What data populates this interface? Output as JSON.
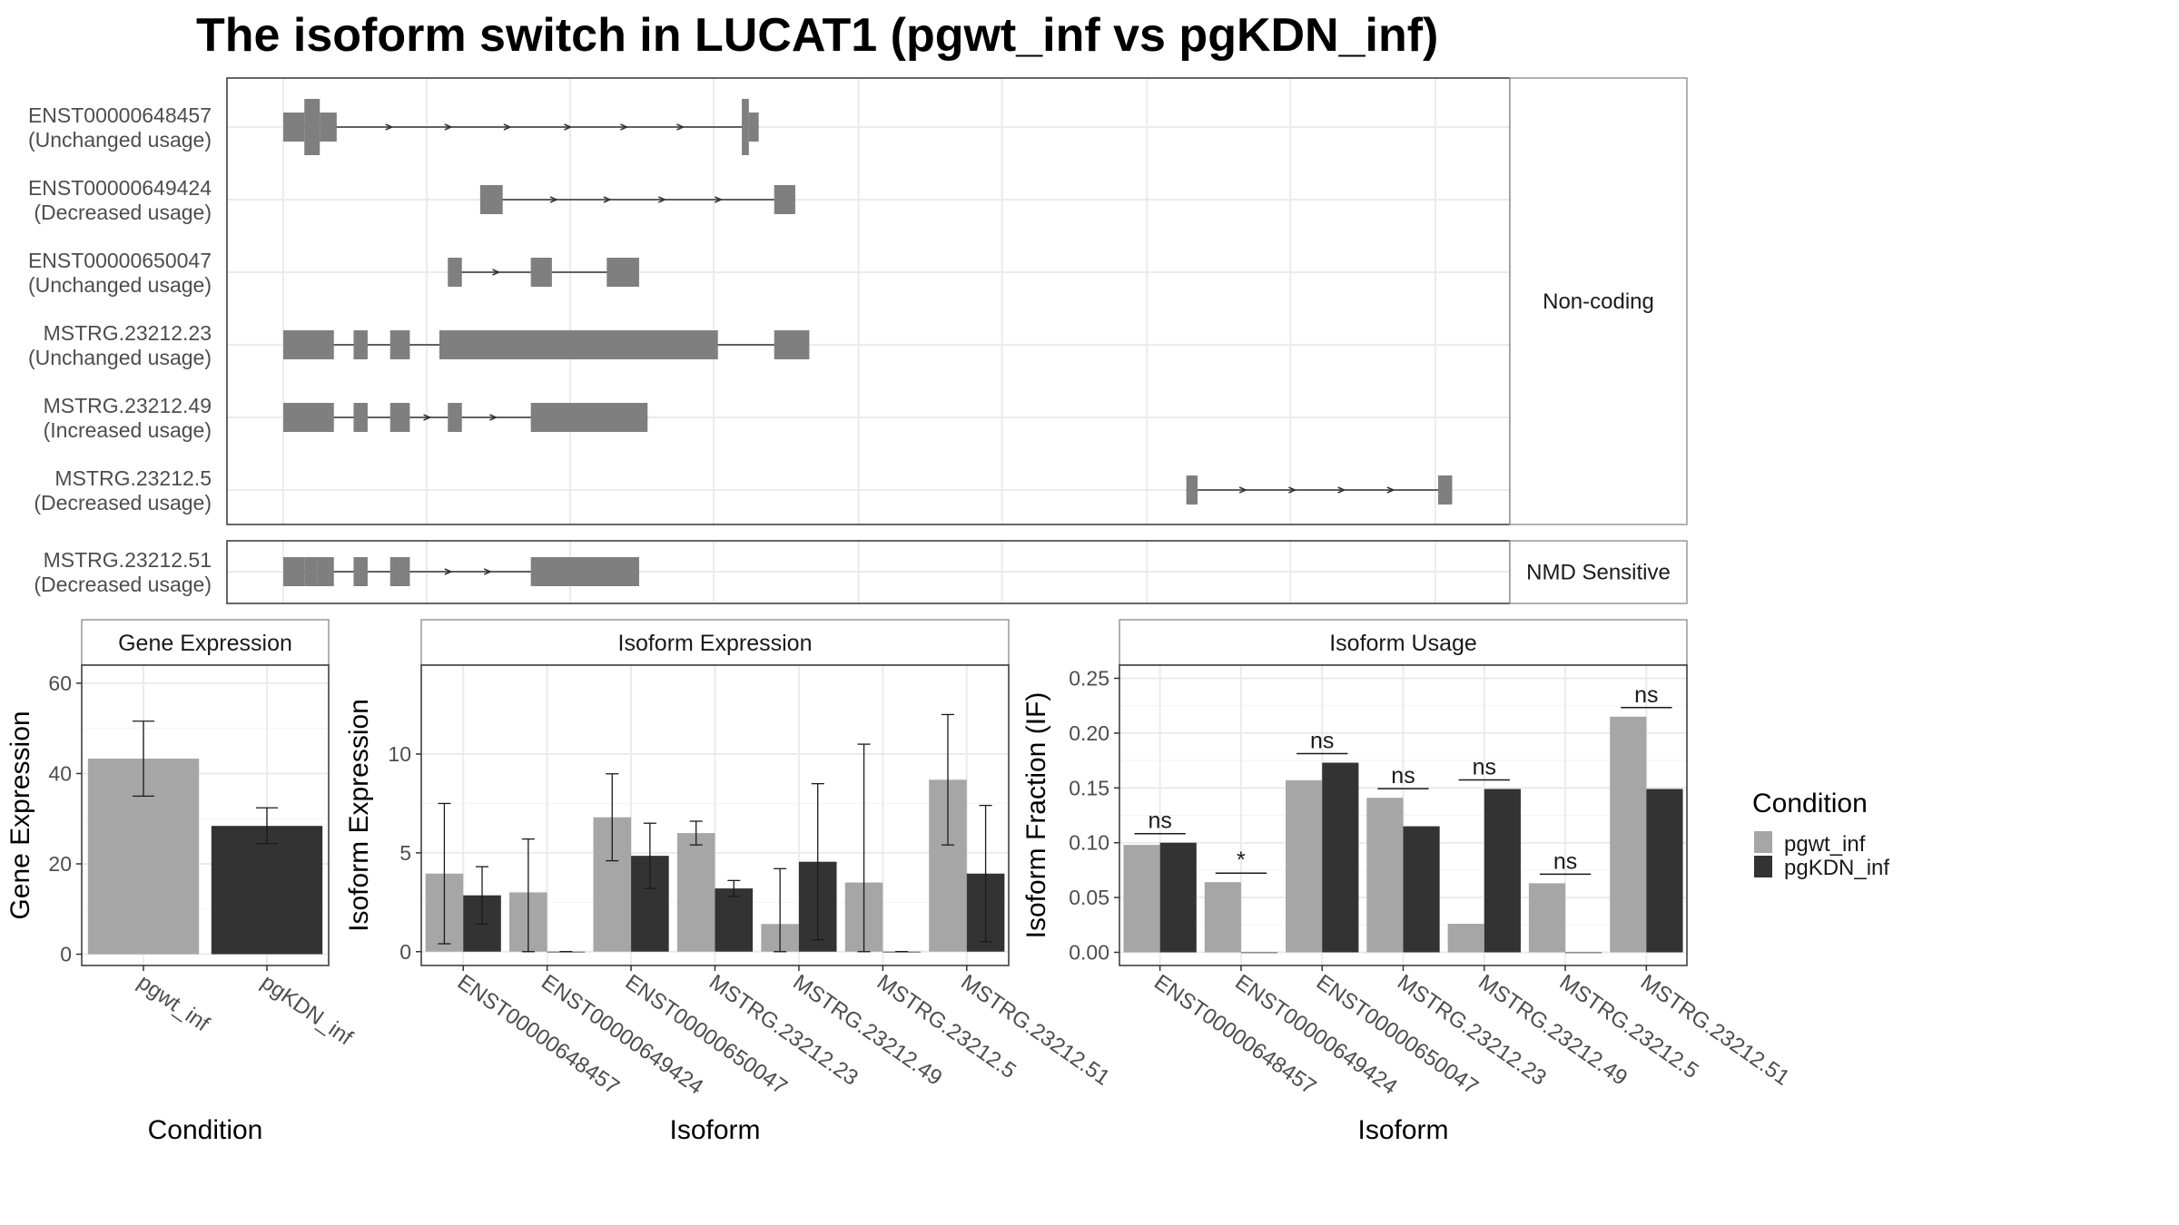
{
  "title": "The isoform switch in LUCAT1 (pgwt_inf vs pgKDN_inf)",
  "colors": {
    "pgwt_inf": "#a6a6a6",
    "pgKDN_inf": "#333333",
    "exon": "#7f7f7f",
    "grid": "#ebebeb",
    "strip": "#ffffff",
    "border": "#333333"
  },
  "chart_data": [
    {
      "type": "gene-structure",
      "groups": [
        {
          "label": "Non-coding",
          "tracks": [
            {
              "name": "ENST00000648457",
              "status": "(Unchanged usage)",
              "exons": [
                [
                  202,
                  217
                ],
                [
                  217,
                  228
                ],
                [
                  228,
                  240
                ],
                [
                  528,
                  533
                ],
                [
                  533,
                  540
                ]
              ],
              "span": [
                202,
                540
              ],
              "arrows": [
                278,
                320,
                362,
                405,
                445,
                485
              ]
            },
            {
              "name": "ENST00000649424",
              "status": "(Decreased usage)",
              "exons": [
                [
                  342,
                  358
                ],
                [
                  551,
                  566
                ]
              ],
              "span": [
                342,
                566
              ],
              "arrows": [
                395,
                433,
                472,
                512
              ]
            },
            {
              "name": "ENST00000650047",
              "status": "(Unchanged usage)",
              "exons": [
                [
                  319,
                  329
                ],
                [
                  378,
                  393
                ],
                [
                  432,
                  455
                ]
              ],
              "span": [
                319,
                455
              ],
              "arrows": [
                354
              ]
            },
            {
              "name": "MSTRG.23212.23",
              "status": "(Unchanged usage)",
              "exons": [
                [
                  202,
                  238
                ],
                [
                  252,
                  262
                ],
                [
                  278,
                  292
                ],
                [
                  313,
                  511
                ],
                [
                  551,
                  576
                ]
              ],
              "span": [
                202,
                576
              ],
              "arrows": []
            },
            {
              "name": "MSTRG.23212.49",
              "status": "(Increased usage)",
              "exons": [
                [
                  202,
                  238
                ],
                [
                  252,
                  262
                ],
                [
                  278,
                  292
                ],
                [
                  319,
                  329
                ],
                [
                  378,
                  461
                ]
              ],
              "span": [
                202,
                461
              ],
              "arrows": [
                305,
                352
              ]
            },
            {
              "name": "MSTRG.23212.5",
              "status": "(Decreased usage)",
              "exons": [
                [
                  844,
                  852
                ],
                [
                  1023,
                  1033
                ]
              ],
              "span": [
                844,
                1033
              ],
              "arrows": [
                885,
                920,
                955,
                990
              ]
            }
          ]
        },
        {
          "label": "NMD Sensitive",
          "tracks": [
            {
              "name": "MSTRG.23212.51",
              "status": "(Decreased usage)",
              "exons": [
                [
                  202,
                  217
                ],
                [
                  217,
                  226
                ],
                [
                  226,
                  238
                ],
                [
                  252,
                  262
                ],
                [
                  278,
                  285
                ],
                [
                  285,
                  292
                ],
                [
                  378,
                  455
                ]
              ],
              "span": [
                202,
                455
              ],
              "arrows": [
                320,
                348
              ]
            }
          ]
        }
      ],
      "xlim": [
        162,
        1074
      ],
      "gridlines": [
        202,
        304,
        406,
        508,
        611,
        713,
        816,
        918,
        1021
      ]
    },
    {
      "type": "bar",
      "title": "Gene Expression",
      "xlabel": "Condition",
      "ylabel": "Gene Expression",
      "categories": [
        "pgwt_inf",
        "pgKDN_inf"
      ],
      "values": [
        43.3,
        28.4
      ],
      "error_low": [
        35.0,
        24.5
      ],
      "error_high": [
        51.6,
        32.4
      ],
      "ylim": [
        -2.5,
        64
      ],
      "yticks": [
        0,
        20,
        40,
        60
      ]
    },
    {
      "type": "bar",
      "title": "Isoform Expression",
      "xlabel": "Isoform",
      "ylabel": "Isoform Expression",
      "categories": [
        "ENST00000648457",
        "ENST00000649424",
        "ENST00000650047",
        "MSTRG.23212.23",
        "MSTRG.23212.49",
        "MSTRG.23212.5",
        "MSTRG.23212.51"
      ],
      "series": [
        {
          "name": "pgwt_inf",
          "values": [
            3.95,
            3.0,
            6.8,
            6.0,
            1.4,
            3.5,
            8.7
          ],
          "error_low": [
            0.4,
            0.0,
            4.6,
            5.4,
            0.0,
            0.0,
            5.4
          ],
          "error_high": [
            7.5,
            5.7,
            9.0,
            6.6,
            4.2,
            10.5,
            12.0
          ]
        },
        {
          "name": "pgKDN_inf",
          "values": [
            2.85,
            0.0,
            4.85,
            3.2,
            4.55,
            0.0,
            3.95
          ],
          "error_low": [
            1.4,
            0.0,
            3.2,
            2.8,
            0.6,
            0.0,
            0.5
          ],
          "error_high": [
            4.3,
            0.0,
            6.5,
            3.6,
            8.5,
            0.0,
            7.4
          ]
        }
      ],
      "ylim": [
        -0.7,
        14.5
      ],
      "yticks": [
        0,
        5,
        10
      ]
    },
    {
      "type": "bar",
      "title": "Isoform Usage",
      "xlabel": "Isoform",
      "ylabel": "Isoform Fraction (IF)",
      "categories": [
        "ENST00000648457",
        "ENST00000649424",
        "ENST00000650047",
        "MSTRG.23212.23",
        "MSTRG.23212.49",
        "MSTRG.23212.5",
        "MSTRG.23212.51"
      ],
      "series": [
        {
          "name": "pgwt_inf",
          "values": [
            0.098,
            0.064,
            0.157,
            0.141,
            0.026,
            0.063,
            0.215
          ]
        },
        {
          "name": "pgKDN_inf",
          "values": [
            0.1,
            0.0,
            0.173,
            0.115,
            0.149,
            0.0,
            0.149
          ]
        }
      ],
      "significance": [
        "ns",
        "*",
        "ns",
        "ns",
        "ns",
        "ns",
        "ns"
      ],
      "ylim": [
        -0.012,
        0.262
      ],
      "yticks": [
        0.0,
        0.05,
        0.1,
        0.15,
        0.2,
        0.25
      ],
      "ytick_labels": [
        "0.00",
        "0.05",
        "0.10",
        "0.15",
        "0.20",
        "0.25"
      ]
    }
  ],
  "legend": {
    "title": "Condition",
    "entries": [
      "pgwt_inf",
      "pgKDN_inf"
    ],
    "placement": "right"
  }
}
